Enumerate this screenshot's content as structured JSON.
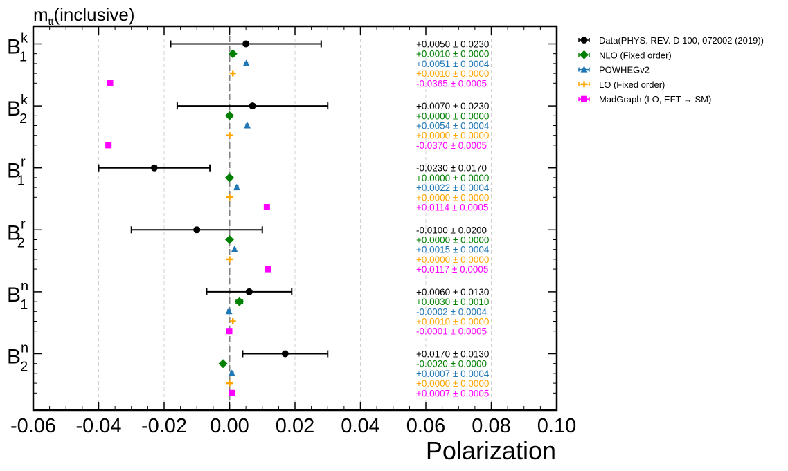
{
  "chart_data": {
    "type": "scatter",
    "title": "m",
    "title_subscript": "tt",
    "title_suffix": "(inclusive)",
    "xlabel": "Polarization",
    "ylabel": "",
    "xlim": [
      -0.06,
      0.1
    ],
    "x_ticks": [
      -0.06,
      -0.04,
      -0.02,
      0.0,
      0.02,
      0.04,
      0.06,
      0.08,
      0.1
    ],
    "x_tick_labels": [
      "-0.06",
      "-0.04",
      "-0.02",
      "0.00",
      "0.02",
      "0.04",
      "0.06",
      "0.08",
      "0.10"
    ],
    "grid": "vertical dashed",
    "reference_line": 0.0,
    "legend_position": "outside-right-top",
    "categories": [
      {
        "base": "B",
        "sub": "1",
        "sup": "k"
      },
      {
        "base": "B",
        "sub": "2",
        "sup": "k"
      },
      {
        "base": "B",
        "sub": "1",
        "sup": "r"
      },
      {
        "base": "B",
        "sub": "2",
        "sup": "r"
      },
      {
        "base": "B",
        "sub": "1",
        "sup": "n"
      },
      {
        "base": "B",
        "sub": "2",
        "sup": "n"
      }
    ],
    "series": [
      {
        "name": "Data(PHYS. REV. D 100, 072002 (2019))",
        "color": "#000000",
        "marker": "circle",
        "values": [
          0.005,
          0.007,
          -0.023,
          -0.01,
          0.006,
          0.017
        ],
        "errors": [
          0.023,
          0.023,
          0.017,
          0.02,
          0.013,
          0.013
        ],
        "labels": [
          "+0.0050 ± 0.0230",
          "+0.0070 ± 0.0230",
          "-0.0230 ± 0.0170",
          "-0.0100 ± 0.0200",
          "+0.0060 ± 0.0130",
          "+0.0170 ± 0.0130"
        ]
      },
      {
        "name": "NLO (Fixed order)",
        "color": "#008000",
        "marker": "diamond",
        "values": [
          0.001,
          0.0,
          0.0,
          0.0,
          0.003,
          -0.002
        ],
        "errors": [
          0.0,
          0.0,
          0.0,
          0.0,
          0.001,
          0.0
        ],
        "labels": [
          "+0.0010 ± 0.0000",
          "+0.0000 ± 0.0000",
          "+0.0000 ± 0.0000",
          "+0.0000 ± 0.0000",
          "+0.0030 ± 0.0010",
          "-0.0020 ± 0.0000"
        ]
      },
      {
        "name": "POWHEGv2",
        "color": "#1f77b4",
        "marker": "triangle",
        "values": [
          0.0051,
          0.0054,
          0.0022,
          0.0015,
          -0.0002,
          0.0007
        ],
        "errors": [
          0.0004,
          0.0004,
          0.0004,
          0.0004,
          0.0004,
          0.0004
        ],
        "labels": [
          "+0.0051 ± 0.0004",
          "+0.0054 ± 0.0004",
          "+0.0022 ± 0.0004",
          "+0.0015 ± 0.0004",
          "-0.0002 ± 0.0004",
          "+0.0007 ± 0.0004"
        ]
      },
      {
        "name": "LO (Fixed order)",
        "color": "#ffa500",
        "marker": "plus",
        "values": [
          0.001,
          0.0,
          0.0,
          0.0,
          0.001,
          0.0
        ],
        "errors": [
          0.0,
          0.0,
          0.0,
          0.0,
          0.0,
          0.0
        ],
        "labels": [
          "+0.0010 ± 0.0000",
          "+0.0000 ± 0.0000",
          "+0.0000 ± 0.0000",
          "+0.0000 ± 0.0000",
          "+0.0010 ± 0.0000",
          "+0.0000 ± 0.0000"
        ]
      },
      {
        "name": "MadGraph (LO, EFT → SM)",
        "color": "#ff00ff",
        "marker": "square",
        "values": [
          -0.0365,
          -0.037,
          0.0114,
          0.0117,
          -0.0001,
          0.0007
        ],
        "errors": [
          0.0005,
          0.0005,
          0.0005,
          0.0005,
          0.0005,
          0.0005
        ],
        "labels": [
          "-0.0365 ± 0.0005",
          "-0.0370 ± 0.0005",
          "+0.0114 ± 0.0005",
          "+0.0117 ± 0.0005",
          "-0.0001 ± 0.0005",
          "+0.0007 ± 0.0005"
        ]
      }
    ]
  }
}
